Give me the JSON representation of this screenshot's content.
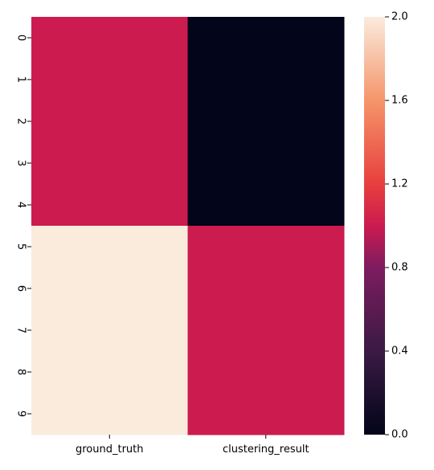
{
  "chart_data": {
    "type": "heatmap",
    "title": "",
    "xlabel": "",
    "ylabel": "",
    "columns": [
      "ground_truth",
      "clustering_result"
    ],
    "rows": [
      "0",
      "1",
      "2",
      "3",
      "4",
      "5",
      "6",
      "7",
      "8",
      "9"
    ],
    "values": [
      [
        1,
        0
      ],
      [
        1,
        0
      ],
      [
        1,
        0
      ],
      [
        1,
        0
      ],
      [
        1,
        0
      ],
      [
        2,
        1
      ],
      [
        2,
        1
      ],
      [
        2,
        1
      ],
      [
        2,
        1
      ],
      [
        2,
        1
      ]
    ],
    "colorbar": {
      "vmin": 0.0,
      "vmax": 2.0,
      "ticks": [
        0.0,
        0.4,
        0.8,
        1.2,
        1.6,
        2.0
      ],
      "tick_labels": [
        "0.0",
        "0.4",
        "0.8",
        "1.2",
        "1.6",
        "2.0"
      ],
      "colormap": "rocket",
      "colorscale": [
        [
          0.0,
          "#03051a"
        ],
        [
          0.2,
          "#3a1a43"
        ],
        [
          0.4,
          "#7d1c60"
        ],
        [
          0.5,
          "#cb1b4f"
        ],
        [
          0.6,
          "#e83f3f"
        ],
        [
          0.8,
          "#f5956a"
        ],
        [
          1.0,
          "#faebdd"
        ]
      ]
    },
    "grid": false
  }
}
